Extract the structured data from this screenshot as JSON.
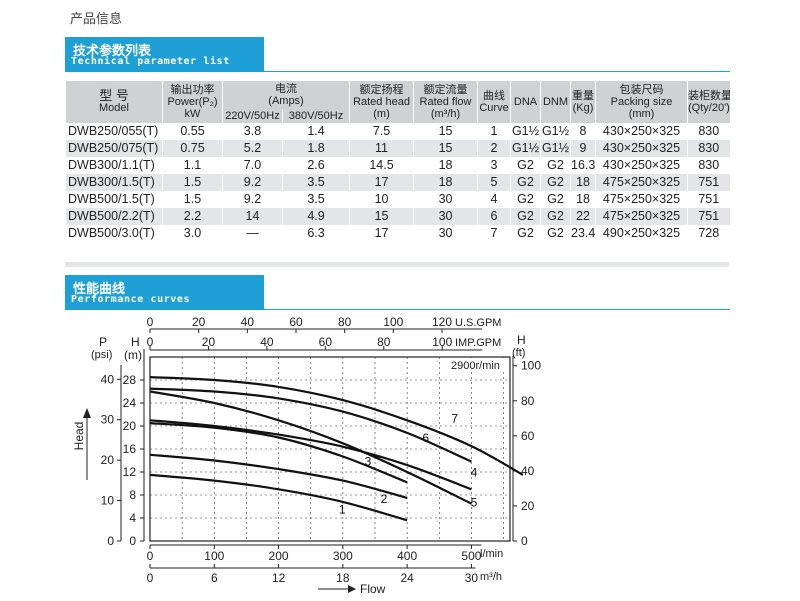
{
  "page_title": "产品信息",
  "section_spec": {
    "title_cn": "技术参数列表",
    "title_en": "Technical parameter list"
  },
  "section_perf": {
    "title_cn": "性能曲线",
    "title_en": "Performance curves"
  },
  "table": {
    "headers": {
      "model": [
        "型 号",
        "Model"
      ],
      "power": [
        "输出功率",
        "Power(P₂)",
        "kW"
      ],
      "current": [
        "电流",
        "(Amps)"
      ],
      "current_220": "220V/50Hz",
      "current_380": "380V/50Hz",
      "head": [
        "额定扬程",
        "Rated head",
        "(m)"
      ],
      "flow": [
        "额定流量",
        "Rated flow",
        "(m³/h)"
      ],
      "curve": [
        "曲线",
        "Curve"
      ],
      "dna": "DNA",
      "dnm": "DNM",
      "weight": [
        "重量",
        "(Kg)"
      ],
      "packing": [
        "包装尺码",
        "Packing size",
        "(mm)"
      ],
      "qty": [
        "装柜数量",
        "(Qty/20')"
      ]
    },
    "rows": [
      [
        "DWB250/055(T)",
        "0.55",
        "3.8",
        "1.4",
        "7.5",
        "15",
        "1",
        "G1½",
        "G1½",
        "8",
        "430×250×325",
        "830"
      ],
      [
        "DWB250/075(T)",
        "0.75",
        "5.2",
        "1.8",
        "11",
        "15",
        "2",
        "G1½",
        "G1½",
        "9",
        "430×250×325",
        "830"
      ],
      [
        "DWB300/1.1(T)",
        "1.1",
        "7.0",
        "2.6",
        "14.5",
        "18",
        "3",
        "G2",
        "G2",
        "16.3",
        "430×250×325",
        "830"
      ],
      [
        "DWB300/1.5(T)",
        "1.5",
        "9.2",
        "3.5",
        "17",
        "18",
        "5",
        "G2",
        "G2",
        "18",
        "475×250×325",
        "751"
      ],
      [
        "DWB500/1.5(T)",
        "1.5",
        "9.2",
        "3.5",
        "10",
        "30",
        "4",
        "G2",
        "G2",
        "18",
        "475×250×325",
        "751"
      ],
      [
        "DWB500/2.2(T)",
        "2.2",
        "14",
        "4.9",
        "15",
        "30",
        "6",
        "G2",
        "G2",
        "22",
        "475×250×325",
        "751"
      ],
      [
        "DWB500/3.0(T)",
        "3.0",
        "—",
        "6.3",
        "17",
        "30",
        "7",
        "G2",
        "G2",
        "23.4",
        "490×250×325",
        "728"
      ]
    ]
  },
  "chart_data": {
    "type": "line",
    "speed_label": "2900r/min",
    "xlabel": "Flow",
    "ylabel": "Head",
    "axes": {
      "primary_x": {
        "unit": "l/min",
        "ticks": [
          0,
          100,
          200,
          300,
          400,
          500
        ],
        "range": [
          0,
          560
        ]
      },
      "m3h_x": {
        "unit": "m³/h",
        "ticks": [
          0,
          6,
          12,
          18,
          24,
          30
        ]
      },
      "usgpm_x": {
        "unit": "U.S.GPM",
        "ticks": [
          0,
          20,
          40,
          60,
          80,
          100,
          120
        ]
      },
      "impgpm_x": {
        "unit": "IMP.GPM",
        "ticks": [
          0,
          20,
          40,
          60,
          80,
          100
        ]
      },
      "head_m": {
        "unit": "(m)",
        "unit_label": "H",
        "ticks": [
          0,
          4,
          8,
          12,
          16,
          20,
          24,
          28
        ],
        "range": [
          0,
          32
        ]
      },
      "pressure_psi": {
        "unit": "(psi)",
        "unit_label": "P",
        "ticks": [
          0,
          10,
          20,
          30,
          40
        ]
      },
      "head_ft": {
        "unit": "(ft)",
        "unit_label": "H",
        "ticks": [
          0,
          20,
          40,
          60,
          80,
          100
        ]
      }
    },
    "series": [
      {
        "name": "1",
        "x": [
          0,
          100,
          200,
          300,
          400
        ],
        "y": [
          11.5,
          10.5,
          9.0,
          6.8,
          3.6
        ],
        "label_at": [
          300,
          5.5
        ]
      },
      {
        "name": "2",
        "x": [
          0,
          100,
          200,
          300,
          400
        ],
        "y": [
          15.0,
          14.0,
          12.5,
          10.5,
          7.5
        ],
        "label_at": [
          365,
          7.3
        ]
      },
      {
        "name": "3",
        "x": [
          0,
          100,
          200,
          300,
          400
        ],
        "y": [
          20.5,
          19.7,
          18.0,
          14.7,
          10.2
        ],
        "label_at": [
          340,
          13.8
        ]
      },
      {
        "name": "4",
        "x": [
          0,
          100,
          200,
          300,
          400,
          500
        ],
        "y": [
          21.0,
          20.0,
          18.5,
          16.4,
          13.2,
          9.0
        ],
        "label_at": [
          505,
          11.9
        ]
      },
      {
        "name": "5",
        "x": [
          0,
          100,
          200,
          300,
          400,
          500
        ],
        "y": [
          26.0,
          24.0,
          21.0,
          17.0,
          12.0,
          6.5
        ],
        "label_at": [
          505,
          6.7
        ]
      },
      {
        "name": "6",
        "x": [
          0,
          100,
          200,
          300,
          400,
          500
        ],
        "y": [
          26.5,
          26.0,
          24.8,
          22.5,
          18.8,
          13.8
        ],
        "label_at": [
          430,
          17.9
        ]
      },
      {
        "name": "7",
        "x": [
          0,
          100,
          200,
          300,
          400,
          500,
          580
        ],
        "y": [
          28.5,
          28.0,
          26.8,
          24.5,
          21.0,
          16.5,
          11.5
        ],
        "label_at": [
          475,
          21.3
        ]
      }
    ]
  }
}
